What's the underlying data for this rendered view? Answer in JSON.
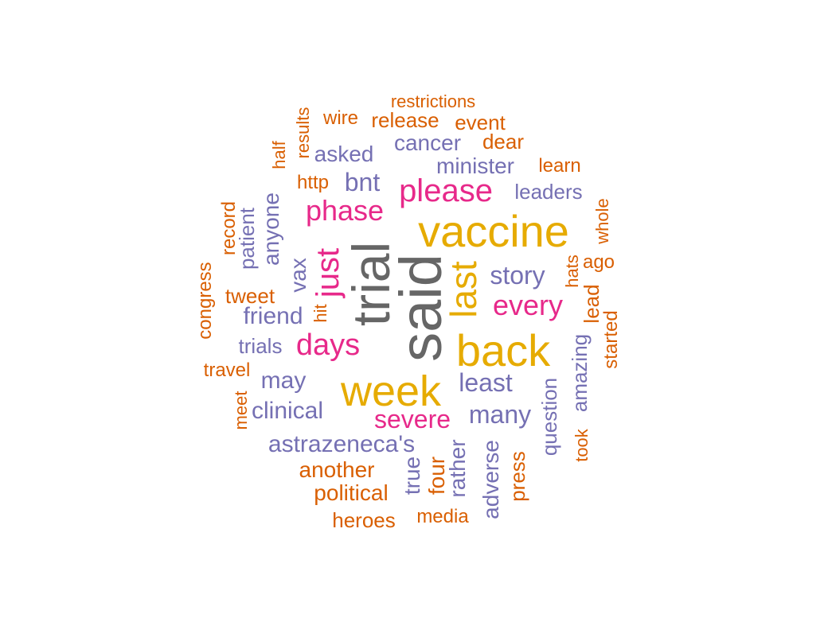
{
  "colors": {
    "gray": "#666666",
    "gold": "#e6ab02",
    "pink": "#e7298a",
    "purple": "#7570b3",
    "orange": "#d95f02"
  },
  "words": [
    {
      "text": "said",
      "color": "gray"
    },
    {
      "text": "trial",
      "color": "gray"
    },
    {
      "text": "vaccine",
      "color": "gold"
    },
    {
      "text": "week",
      "color": "gold"
    },
    {
      "text": "back",
      "color": "gold"
    },
    {
      "text": "last",
      "color": "gold"
    },
    {
      "text": "please",
      "color": "pink"
    },
    {
      "text": "phase",
      "color": "pink"
    },
    {
      "text": "just",
      "color": "pink"
    },
    {
      "text": "days",
      "color": "pink"
    },
    {
      "text": "every",
      "color": "pink"
    },
    {
      "text": "severe",
      "color": "pink"
    },
    {
      "text": "story",
      "color": "purple"
    },
    {
      "text": "least",
      "color": "purple"
    },
    {
      "text": "many",
      "color": "purple"
    },
    {
      "text": "bnt",
      "color": "purple"
    },
    {
      "text": "minister",
      "color": "purple"
    },
    {
      "text": "cancer",
      "color": "purple"
    },
    {
      "text": "asked",
      "color": "purple"
    },
    {
      "text": "leaders",
      "color": "purple"
    },
    {
      "text": "anyone",
      "color": "purple"
    },
    {
      "text": "patient",
      "color": "purple"
    },
    {
      "text": "vax",
      "color": "purple"
    },
    {
      "text": "friend",
      "color": "purple"
    },
    {
      "text": "trials",
      "color": "purple"
    },
    {
      "text": "may",
      "color": "purple"
    },
    {
      "text": "clinical",
      "color": "purple"
    },
    {
      "text": "astrazeneca's",
      "color": "purple"
    },
    {
      "text": "question",
      "color": "purple"
    },
    {
      "text": "amazing",
      "color": "purple"
    },
    {
      "text": "true",
      "color": "purple"
    },
    {
      "text": "rather",
      "color": "purple"
    },
    {
      "text": "adverse",
      "color": "purple"
    },
    {
      "text": "restrictions",
      "color": "orange"
    },
    {
      "text": "wire",
      "color": "orange"
    },
    {
      "text": "release",
      "color": "orange"
    },
    {
      "text": "event",
      "color": "orange"
    },
    {
      "text": "results",
      "color": "orange"
    },
    {
      "text": "dear",
      "color": "orange"
    },
    {
      "text": "half",
      "color": "orange"
    },
    {
      "text": "learn",
      "color": "orange"
    },
    {
      "text": "http",
      "color": "orange"
    },
    {
      "text": "record",
      "color": "orange"
    },
    {
      "text": "whole",
      "color": "orange"
    },
    {
      "text": "ago",
      "color": "orange"
    },
    {
      "text": "hats",
      "color": "orange"
    },
    {
      "text": "congress",
      "color": "orange"
    },
    {
      "text": "tweet",
      "color": "orange"
    },
    {
      "text": "hit",
      "color": "orange"
    },
    {
      "text": "lead",
      "color": "orange"
    },
    {
      "text": "started",
      "color": "orange"
    },
    {
      "text": "travel",
      "color": "orange"
    },
    {
      "text": "meet",
      "color": "orange"
    },
    {
      "text": "took",
      "color": "orange"
    },
    {
      "text": "another",
      "color": "orange"
    },
    {
      "text": "four",
      "color": "orange"
    },
    {
      "text": "political",
      "color": "orange"
    },
    {
      "text": "press",
      "color": "orange"
    },
    {
      "text": "heroes",
      "color": "orange"
    },
    {
      "text": "media",
      "color": "orange"
    }
  ]
}
